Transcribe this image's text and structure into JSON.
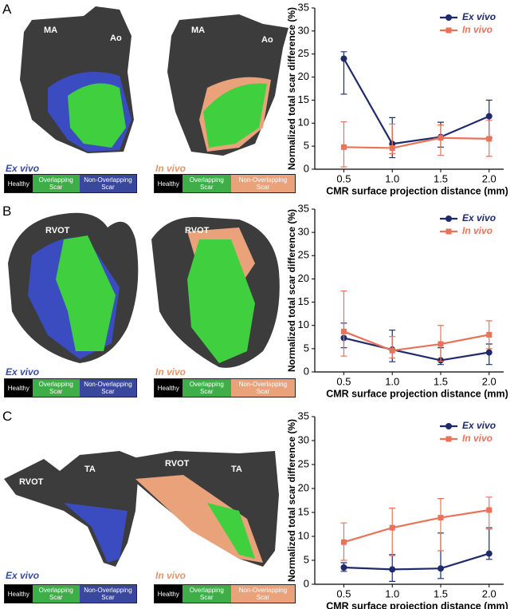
{
  "panels": [
    {
      "label": "A",
      "images": [
        {
          "caption": "Ex vivo",
          "landmarks": [
            "MA",
            "Ao"
          ],
          "key": [
            "Healthy",
            "Overlapping Scar",
            "Non-Overlapping Scar"
          ]
        },
        {
          "caption": "In vivo",
          "landmarks": [
            "MA",
            "Ao"
          ],
          "key": [
            "Healthy",
            "Overlapping Scar",
            "Non-Overlapping Scar"
          ]
        }
      ]
    },
    {
      "label": "B",
      "images": [
        {
          "caption": "Ex vivo",
          "landmarks": [
            "RVOT"
          ],
          "key": [
            "Healthy",
            "Overlapping Scar",
            "Non-Overlapping Scar"
          ]
        },
        {
          "caption": "In vivo",
          "landmarks": [
            "RVOT"
          ],
          "key": [
            "Healthy",
            "Overlapping Scar",
            "Non-Overlapping Scar"
          ]
        }
      ]
    },
    {
      "label": "C",
      "images": [
        {
          "caption": "Ex vivo",
          "landmarks": [
            "RVOT",
            "TA"
          ],
          "key": [
            "Healthy",
            "Overlapping Scar",
            "Non-Overlapping Scar"
          ]
        },
        {
          "caption": "In vivo",
          "landmarks": [
            "RVOT",
            "TA"
          ],
          "key": [
            "Healthy",
            "Overlapping Scar",
            "Non-Overlapping Scar"
          ]
        }
      ]
    }
  ],
  "chart_data": [
    {
      "type": "line",
      "y_label": "Normalized total scar difference (%)",
      "x_label": "CMR surface projection distance (mm)",
      "x": [
        0.5,
        1.0,
        1.5,
        2.0
      ],
      "xlim": [
        0.2,
        2.15
      ],
      "xticks": [
        0.5,
        {
          "value": 1,
          "label": "1.0"
        },
        1.5,
        {
          "value": 2,
          "label": "2.0"
        }
      ],
      "ylim": [
        0,
        35
      ],
      "yticks": [
        0,
        5,
        10,
        15,
        20,
        25,
        30,
        35
      ],
      "legend": "upper right",
      "series": [
        {
          "name": "Ex vivo",
          "color": "#1f2a6b",
          "marker": "circle",
          "values": [
            24,
            5.5,
            7,
            11.5
          ],
          "error_low": [
            16.3,
            2.5,
            4.8,
            6.8
          ],
          "error_high": [
            25.5,
            11.2,
            10.2,
            15
          ]
        },
        {
          "name": "In vivo",
          "color": "#e8735a",
          "marker": "square",
          "values": [
            4.8,
            4.6,
            6.8,
            6.6
          ],
          "error_low": [
            0.5,
            3.4,
            3.0,
            2.8
          ],
          "error_high": [
            10.3,
            9.8,
            9.6,
            10.6
          ]
        }
      ]
    },
    {
      "type": "line",
      "y_label": "Normalized total scar difference (%)",
      "x_label": "CMR surface projection distance (mm)",
      "x": [
        0.5,
        1.0,
        1.5,
        2.0
      ],
      "xlim": [
        0.2,
        2.15
      ],
      "xticks": [
        0.5,
        {
          "value": 1,
          "label": "1.0"
        },
        1.5,
        {
          "value": 2,
          "label": "2.0"
        }
      ],
      "ylim": [
        0,
        35
      ],
      "yticks": [
        0,
        5,
        10,
        15,
        20,
        25,
        30,
        35
      ],
      "legend": "upper right",
      "series": [
        {
          "name": "Ex vivo",
          "color": "#1f2a6b",
          "marker": "circle",
          "values": [
            7.3,
            4.8,
            2.5,
            4.2
          ],
          "error_low": [
            5.2,
            2.2,
            1.6,
            1.6
          ],
          "error_high": [
            10.5,
            9.0,
            5.2,
            6.0
          ]
        },
        {
          "name": "In vivo",
          "color": "#e8735a",
          "marker": "square",
          "values": [
            8.7,
            4.6,
            6.0,
            8.0
          ],
          "error_low": [
            3.4,
            3.0,
            2.3,
            5.0
          ],
          "error_high": [
            17.4,
            7.6,
            10.0,
            11.0
          ]
        }
      ]
    },
    {
      "type": "line",
      "y_label": "Normalized total scar difference (%)",
      "x_label": "CMR surface projection distance (mm)",
      "x": [
        0.5,
        1.0,
        1.5,
        2.0
      ],
      "xlim": [
        0.2,
        2.15
      ],
      "xticks": [
        0.5,
        {
          "value": 1,
          "label": "1.0"
        },
        1.5,
        {
          "value": 2,
          "label": "2.0"
        }
      ],
      "ylim": [
        0,
        35
      ],
      "yticks": [
        0,
        5,
        10,
        15,
        20,
        25,
        30,
        35
      ],
      "legend": "upper right",
      "series": [
        {
          "name": "Ex vivo",
          "color": "#1f2a6b",
          "marker": "circle",
          "values": [
            3.5,
            3.1,
            3.3,
            6.4
          ],
          "error_low": [
            2.7,
            0.6,
            1.2,
            5.2
          ],
          "error_high": [
            4.5,
            6.2,
            10.7,
            11.8
          ]
        },
        {
          "name": "In vivo",
          "color": "#e8735a",
          "marker": "square",
          "values": [
            8.8,
            11.8,
            13.9,
            15.5
          ],
          "error_low": [
            5.0,
            6.0,
            7.0,
            11.5
          ],
          "error_high": [
            12.8,
            15.9,
            17.9,
            18.2
          ]
        }
      ]
    }
  ]
}
